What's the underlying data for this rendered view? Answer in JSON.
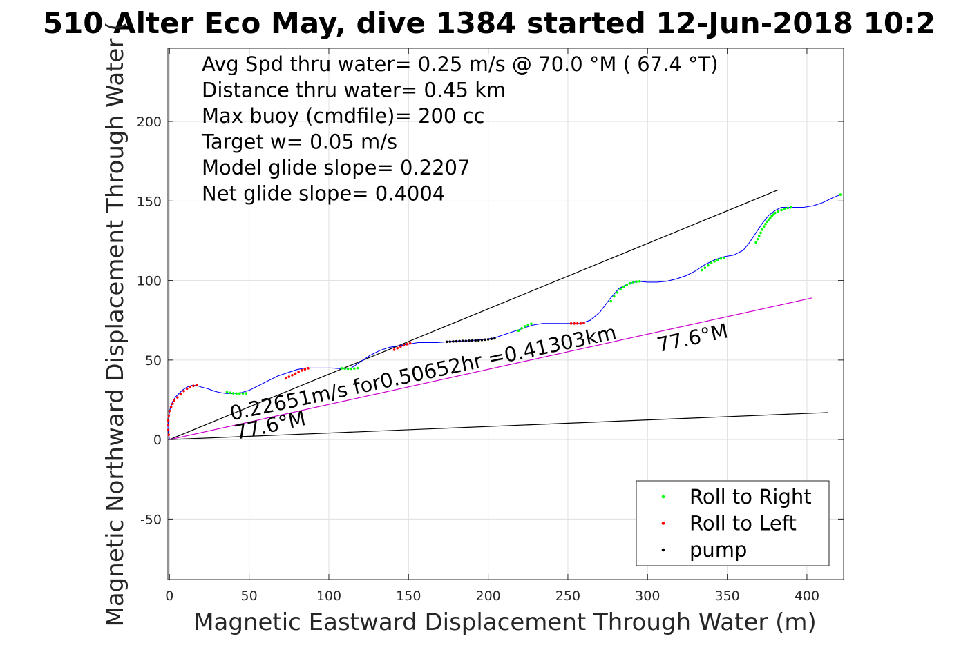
{
  "chart_data": {
    "type": "scatter",
    "title": "510 Alter Eco May, dive 1384 started 12-Jun-2018 10:2",
    "xlabel": "Magnetic Eastward Displacement Through Water (m)",
    "ylabel": "Magnetic Northward Displacement Through Water (",
    "xlim": [
      -1,
      423
    ],
    "ylim": [
      -88,
      246
    ],
    "xticks": [
      0,
      50,
      100,
      150,
      200,
      250,
      300,
      350,
      400
    ],
    "yticks": [
      -50,
      0,
      50,
      100,
      150,
      200
    ],
    "grid": true,
    "legend_position": "bottom-right",
    "stats_lines": [
      "Avg Spd thru water=  0.25 m/s @  70.0 °M ( 67.4 °T)",
      "Distance thru water=  0.45 km",
      "Max buoy (cmdfile)= 200 cc",
      "Target w= 0.05 m/s",
      "Model glide slope= 0.2207",
      "Net glide slope= 0.4004"
    ],
    "annotations": [
      {
        "text": "0.22651m/s for0.50652hr =0.41303km",
        "x": 39,
        "y": 12,
        "angle_deg": 12
      },
      {
        "text": "77.6°M",
        "x": 42,
        "y": 0,
        "angle_deg": 12
      },
      {
        "text": "77.6°M",
        "x": 307,
        "y": 55,
        "angle_deg": 12
      }
    ],
    "reference_lines": [
      {
        "name": "upper-bound",
        "color": "#000000",
        "x": [
          0,
          382
        ],
        "y": [
          0,
          157
        ]
      },
      {
        "name": "lower-bound",
        "color": "#000000",
        "x": [
          0,
          413
        ],
        "y": [
          0,
          17
        ]
      },
      {
        "name": "heading-line",
        "color": "#cc00cc",
        "x": [
          0,
          403
        ],
        "y": [
          0,
          89
        ]
      }
    ],
    "series": [
      {
        "name": "track",
        "color": "#0000ff",
        "x": [
          0,
          -0.5,
          -1,
          -0.5,
          0,
          1,
          2,
          4,
          6,
          8,
          11,
          14,
          17,
          20,
          24,
          28,
          32,
          36,
          40,
          45,
          50,
          56,
          62,
          68,
          74,
          80,
          85,
          90,
          96,
          102,
          108,
          114,
          120,
          126,
          132,
          138,
          144,
          150,
          156,
          162,
          168,
          174,
          180,
          186,
          192,
          198,
          204,
          210,
          216,
          222,
          228,
          234,
          240,
          246,
          252,
          258,
          264,
          270,
          276,
          282,
          288,
          294,
          300,
          306,
          312,
          318,
          324,
          330,
          336,
          342,
          348,
          354,
          360,
          364,
          368,
          372,
          376,
          380,
          384,
          388,
          392,
          398,
          404,
          410,
          416,
          421
        ],
        "y": [
          0,
          3,
          8,
          13,
          18,
          21,
          24,
          27,
          29,
          31,
          33,
          34,
          34,
          33,
          32,
          30.5,
          29.5,
          29,
          29,
          29.5,
          31,
          34,
          37,
          40,
          42,
          44,
          45,
          45,
          45,
          45,
          44.5,
          45,
          49,
          53,
          56,
          58,
          59,
          60,
          61,
          61,
          61,
          61.5,
          62,
          62,
          62.5,
          63,
          64,
          66,
          68,
          70,
          72,
          73,
          73,
          73,
          73,
          73,
          75,
          80,
          88,
          95,
          98,
          99.5,
          99,
          99,
          99.5,
          101,
          103,
          106,
          110,
          113,
          115,
          116,
          119,
          124,
          130,
          136,
          141,
          144,
          146,
          146,
          146,
          146,
          147,
          149,
          152,
          154
        ]
      },
      {
        "name": "Roll to Right",
        "color": "#00ff00",
        "x": [
          36,
          38,
          40,
          42,
          44,
          46,
          48,
          108,
          110,
          112,
          114,
          116,
          118,
          219,
          221,
          223,
          225,
          227,
          277,
          279,
          281,
          283,
          285,
          287,
          289,
          291,
          293,
          295,
          334,
          336,
          338,
          340,
          342,
          344,
          346,
          348,
          368,
          369,
          370,
          371,
          372,
          373,
          374,
          375,
          376,
          377,
          378,
          379,
          380,
          382,
          384,
          386,
          388,
          390,
          421
        ],
        "y": [
          29.8,
          29.4,
          29.1,
          29,
          29,
          29,
          29.1,
          44.8,
          44.6,
          44.5,
          44.5,
          44.6,
          44.9,
          68.5,
          70,
          71.2,
          72.2,
          72.8,
          87,
          90,
          92.5,
          94.5,
          96,
          97.2,
          98.2,
          98.9,
          99.3,
          99.5,
          106.5,
          108,
          109.5,
          111,
          112,
          113,
          113.8,
          114.3,
          124,
          126,
          128,
          130,
          132,
          134,
          135.5,
          137,
          138.3,
          139.5,
          140.5,
          141.5,
          142.5,
          143.5,
          144.3,
          145,
          145.6,
          146,
          154
        ]
      },
      {
        "name": "Roll to Left",
        "color": "#ff0000",
        "x": [
          -0.5,
          -0.8,
          -1,
          -0.8,
          -0.5,
          0,
          1,
          2,
          3,
          5,
          7,
          9,
          11,
          13,
          15,
          17,
          73,
          75,
          77,
          79,
          81,
          83,
          85,
          87,
          141,
          143,
          145,
          147,
          149,
          151,
          252,
          254,
          256,
          258,
          260
        ],
        "y": [
          3,
          6,
          9,
          12,
          15,
          18,
          20.5,
          22.5,
          24.5,
          26.5,
          28.5,
          30.5,
          32,
          33,
          33.8,
          34.2,
          38.5,
          39.5,
          40.5,
          41.5,
          42.5,
          43.5,
          44.2,
          44.8,
          56.5,
          57.5,
          58.5,
          59.3,
          60,
          60.5,
          73,
          73,
          73,
          73,
          73.2
        ]
      },
      {
        "name": "pump",
        "color": "#000000",
        "x": [
          174,
          176,
          178,
          180,
          182,
          184,
          186,
          188,
          190,
          192,
          194,
          196,
          198,
          200,
          202,
          204
        ],
        "y": [
          61.5,
          61.6,
          61.7,
          61.8,
          61.9,
          62,
          62,
          62.1,
          62.2,
          62.3,
          62.4,
          62.6,
          62.8,
          63,
          63.3,
          63.6
        ]
      }
    ],
    "legend": [
      "Roll to Right",
      "Roll to Left",
      "pump"
    ]
  }
}
